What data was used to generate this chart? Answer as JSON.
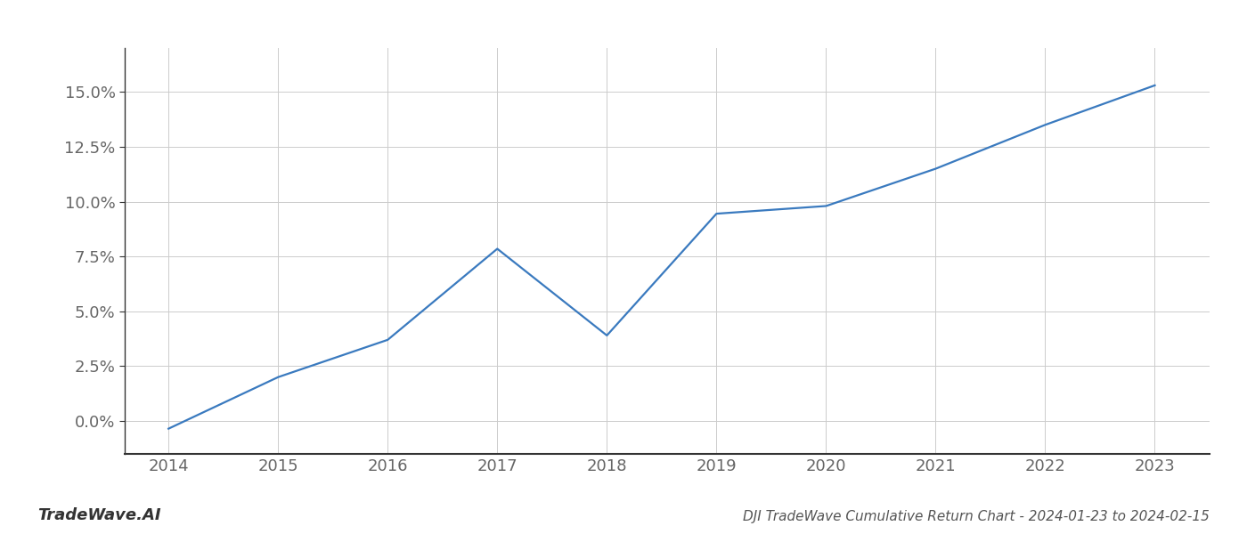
{
  "x_years": [
    2014,
    2015,
    2016,
    2017,
    2018,
    2019,
    2020,
    2021,
    2022,
    2023
  ],
  "y_values": [
    -0.35,
    2.0,
    3.7,
    7.85,
    3.9,
    9.45,
    9.8,
    11.5,
    13.5,
    15.3
  ],
  "line_color": "#3a7abf",
  "line_width": 1.6,
  "background_color": "#ffffff",
  "grid_color": "#cccccc",
  "title": "DJI TradeWave Cumulative Return Chart - 2024-01-23 to 2024-02-15",
  "watermark": "TradeWave.AI",
  "xlim": [
    2013.6,
    2023.5
  ],
  "ylim": [
    -1.5,
    17.0
  ],
  "yticks": [
    0.0,
    2.5,
    5.0,
    7.5,
    10.0,
    12.5,
    15.0
  ],
  "xticks": [
    2014,
    2015,
    2016,
    2017,
    2018,
    2019,
    2020,
    2021,
    2022,
    2023
  ],
  "title_fontsize": 11,
  "tick_fontsize": 13,
  "watermark_fontsize": 13,
  "spine_color": "#333333"
}
